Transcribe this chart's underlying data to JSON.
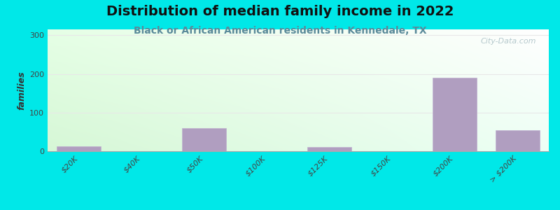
{
  "title": "Distribution of median family income in 2022",
  "subtitle": "Black or African American residents in Kennedale, TX",
  "ylabel": "families",
  "categories": [
    "$20K",
    "$40K",
    "$50K",
    "$100K",
    "$125K",
    "$150K",
    "$200K",
    "> $200K"
  ],
  "values": [
    13,
    0,
    60,
    0,
    10,
    0,
    190,
    55
  ],
  "bar_color": "#b09ec0",
  "bar_edgecolor": "#c0b0d0",
  "background_color": "#00e8e8",
  "plot_bg_topleft": "#e8ffe8",
  "plot_bg_topright": "#ffffff",
  "plot_bg_bottomleft": "#d8f5d8",
  "plot_bg_bottomright": "#f0f8ff",
  "ylim": [
    0,
    315
  ],
  "yticks": [
    0,
    100,
    200,
    300
  ],
  "title_fontsize": 14,
  "subtitle_fontsize": 10,
  "ylabel_fontsize": 9,
  "tick_fontsize": 8,
  "watermark": "City-Data.com"
}
